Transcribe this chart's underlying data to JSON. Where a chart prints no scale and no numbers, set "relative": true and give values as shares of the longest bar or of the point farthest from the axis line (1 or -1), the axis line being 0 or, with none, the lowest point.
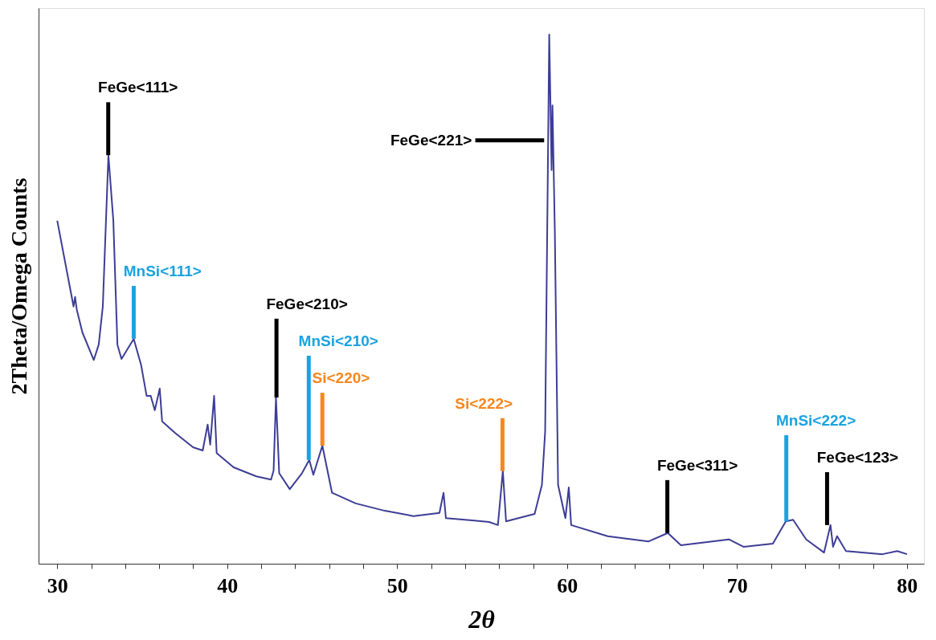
{
  "chart_data": {
    "type": "line",
    "relative": true,
    "xlabel": "2θ",
    "ylabel": "2Theta/Omega Counts",
    "xlim": [
      28.9,
      81
    ],
    "xticks": [
      30,
      {
        "value": 32,
        "label": null
      },
      {
        "value": 34,
        "label": null
      },
      {
        "value": 36,
        "label": null
      },
      {
        "value": 38,
        "label": null
      },
      40,
      {
        "value": 42,
        "label": null
      },
      {
        "value": 44,
        "label": null
      },
      {
        "value": 46,
        "label": null
      },
      {
        "value": 48,
        "label": null
      },
      50,
      {
        "value": 52,
        "label": null
      },
      {
        "value": 54,
        "label": null
      },
      {
        "value": 56,
        "label": null
      },
      {
        "value": 58,
        "label": null
      },
      60,
      {
        "value": 62,
        "label": null
      },
      {
        "value": 64,
        "label": null
      },
      {
        "value": 66,
        "label": null
      },
      {
        "value": 68,
        "label": null
      },
      70,
      {
        "value": 72,
        "label": null
      },
      {
        "value": 74,
        "label": null
      },
      {
        "value": 76,
        "label": null
      },
      {
        "value": 78,
        "label": null
      },
      80
    ],
    "grid": false,
    "marker": "none",
    "line_style": "solid",
    "series": [
      {
        "color": "#3d3d96",
        "x": [
          30.0,
          30.96,
          31.05,
          31.15,
          31.48,
          32.15,
          32.44,
          32.68,
          33.01,
          33.3,
          33.54,
          33.78,
          34.5,
          34.93,
          35.26,
          35.5,
          35.74,
          36.03,
          36.17,
          36.94,
          37.99,
          38.56,
          38.85,
          39.0,
          39.23,
          39.38,
          40.38,
          41.72,
          42.58,
          42.73,
          42.87,
          43.06,
          43.68,
          44.4,
          44.83,
          45.07,
          45.6,
          46.17,
          47.56,
          49.28,
          50.96,
          52.49,
          52.73,
          52.87,
          54.4,
          55.41,
          55.93,
          56.22,
          56.41,
          58.09,
          58.52,
          58.71,
          58.95,
          59.09,
          59.14,
          59.28,
          59.47,
          59.9,
          60.1,
          60.24,
          62.39,
          64.78,
          65.93,
          66.7,
          69.52,
          70.38,
          72.11,
          72.87,
          73.3,
          74.07,
          75.12,
          75.5,
          75.65,
          75.89,
          76.41,
          78.56,
          79.43,
          80.0
        ],
        "values": [
          0.648,
          0.486,
          0.504,
          0.48,
          0.437,
          0.385,
          0.414,
          0.486,
          0.772,
          0.648,
          0.414,
          0.387,
          0.425,
          0.376,
          0.317,
          0.317,
          0.29,
          0.331,
          0.269,
          0.247,
          0.22,
          0.214,
          0.263,
          0.225,
          0.317,
          0.209,
          0.182,
          0.165,
          0.159,
          0.176,
          0.314,
          0.171,
          0.141,
          0.171,
          0.196,
          0.168,
          0.223,
          0.134,
          0.114,
          0.1,
          0.09,
          0.096,
          0.134,
          0.086,
          0.082,
          0.079,
          0.073,
          0.175,
          0.08,
          0.094,
          0.149,
          0.25,
          1.0,
          0.744,
          0.866,
          0.627,
          0.149,
          0.086,
          0.144,
          0.073,
          0.052,
          0.042,
          0.058,
          0.035,
          0.046,
          0.032,
          0.038,
          0.08,
          0.083,
          0.046,
          0.021,
          0.073,
          0.032,
          0.052,
          0.024,
          0.018,
          0.024,
          0.018
        ]
      }
    ],
    "annotations": [
      {
        "text": "FeGe<111>",
        "x": 33.0,
        "y": 0.772
      },
      {
        "text": "MnSi<111>",
        "x": 34.5,
        "y": 0.425
      },
      {
        "text": "FeGe<210>",
        "x": 42.9,
        "y": 0.314
      },
      {
        "text": "MnSi<210>",
        "x": 44.8,
        "y": 0.196
      },
      {
        "text": "Si<220>",
        "x": 45.6,
        "y": 0.223
      },
      {
        "text": "Si<222>",
        "x": 56.2,
        "y": 0.175
      },
      {
        "text": "FeGe<221>",
        "x": 58.8,
        "y": 0.8
      },
      {
        "text": "FeGe<311>",
        "x": 65.9,
        "y": 0.058
      },
      {
        "text": "MnSi<222>",
        "x": 72.9,
        "y": 0.08
      },
      {
        "text": "FeGe<123>",
        "x": 75.3,
        "y": 0.073
      }
    ]
  }
}
